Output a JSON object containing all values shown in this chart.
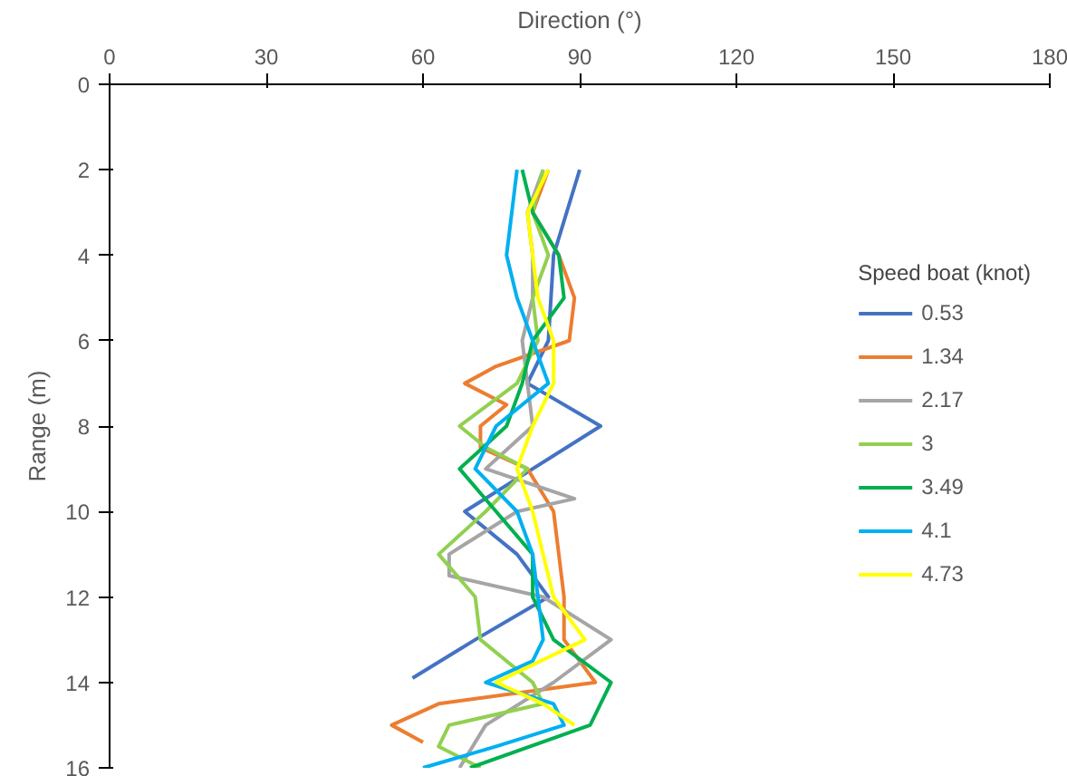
{
  "chart_data": {
    "type": "line",
    "xlabel": "Direction (°)",
    "ylabel": "Range (m)",
    "legend_title": "Speed boat (knot)",
    "xlim": [
      0,
      180
    ],
    "xticks": [
      0,
      30,
      60,
      90,
      120,
      150,
      180
    ],
    "ylim": [
      16,
      0
    ],
    "yticks": [
      0,
      2,
      4,
      6,
      8,
      10,
      12,
      14,
      16
    ],
    "grid": false,
    "legend": "right",
    "marker": "none",
    "line_style": "solid",
    "series": [
      {
        "name": "0.53",
        "color": "#4472c4",
        "x": [
          90,
          85,
          84,
          80,
          94,
          81,
          68,
          78,
          84,
          70,
          58
        ],
        "values": [
          2,
          4,
          6,
          7,
          8,
          9,
          10,
          11,
          12,
          13,
          13.9
        ]
      },
      {
        "name": "1.34",
        "color": "#ed7d31",
        "x": [
          84,
          81,
          86,
          89,
          88,
          74,
          68,
          76,
          71,
          71,
          80,
          85,
          86,
          87,
          87,
          93,
          63,
          54,
          60
        ],
        "values": [
          2,
          3,
          4,
          5,
          6,
          6.6,
          7,
          7.5,
          8,
          8.5,
          9,
          10,
          11,
          12,
          13,
          14,
          14.5,
          15,
          15.4
        ]
      },
      {
        "name": "2.17",
        "color": "#a5a5a5",
        "x": [
          83,
          80,
          81,
          81,
          79,
          80,
          81,
          72,
          89,
          78,
          65,
          65,
          83,
          96,
          85,
          72,
          67
        ],
        "values": [
          2,
          3,
          4,
          5,
          6,
          7,
          8,
          9,
          9.7,
          10,
          11,
          11.5,
          12,
          13,
          14,
          15,
          16
        ]
      },
      {
        "name": "3",
        "color": "#92d050",
        "x": [
          83,
          81,
          84,
          81,
          82,
          78,
          67,
          72,
          80,
          72,
          63,
          70,
          71,
          81,
          83,
          65,
          63,
          71
        ],
        "values": [
          2,
          3,
          4,
          5,
          6,
          7,
          8,
          8.5,
          9,
          10,
          11,
          12,
          13,
          14,
          14.5,
          15,
          15.5,
          16
        ]
      },
      {
        "name": "3.49",
        "color": "#00b050",
        "x": [
          79,
          81,
          86,
          87,
          81,
          79,
          76,
          67,
          74,
          81,
          81,
          85,
          96,
          92,
          69
        ],
        "values": [
          2,
          3,
          4,
          5,
          6,
          7,
          8,
          9,
          10,
          11,
          12,
          13,
          14,
          15,
          16
        ]
      },
      {
        "name": "4.1",
        "color": "#00b0f0",
        "x": [
          78,
          77,
          76,
          78,
          81,
          84,
          74,
          70,
          78,
          81,
          82,
          83,
          81,
          72,
          85,
          87,
          74,
          60
        ],
        "values": [
          2,
          3,
          4,
          5,
          6,
          7,
          8,
          9,
          10,
          11,
          12,
          13,
          13.5,
          14,
          14.5,
          15,
          15.5,
          16
        ]
      },
      {
        "name": "4.73",
        "color": "#ffff00",
        "x": [
          84,
          80,
          81,
          82,
          85,
          85,
          81,
          78,
          81,
          83,
          85,
          91,
          74,
          83,
          89
        ],
        "values": [
          2,
          3,
          4,
          5,
          6,
          7,
          8,
          9,
          10,
          11,
          12,
          13,
          14,
          14.5,
          15
        ]
      }
    ]
  }
}
